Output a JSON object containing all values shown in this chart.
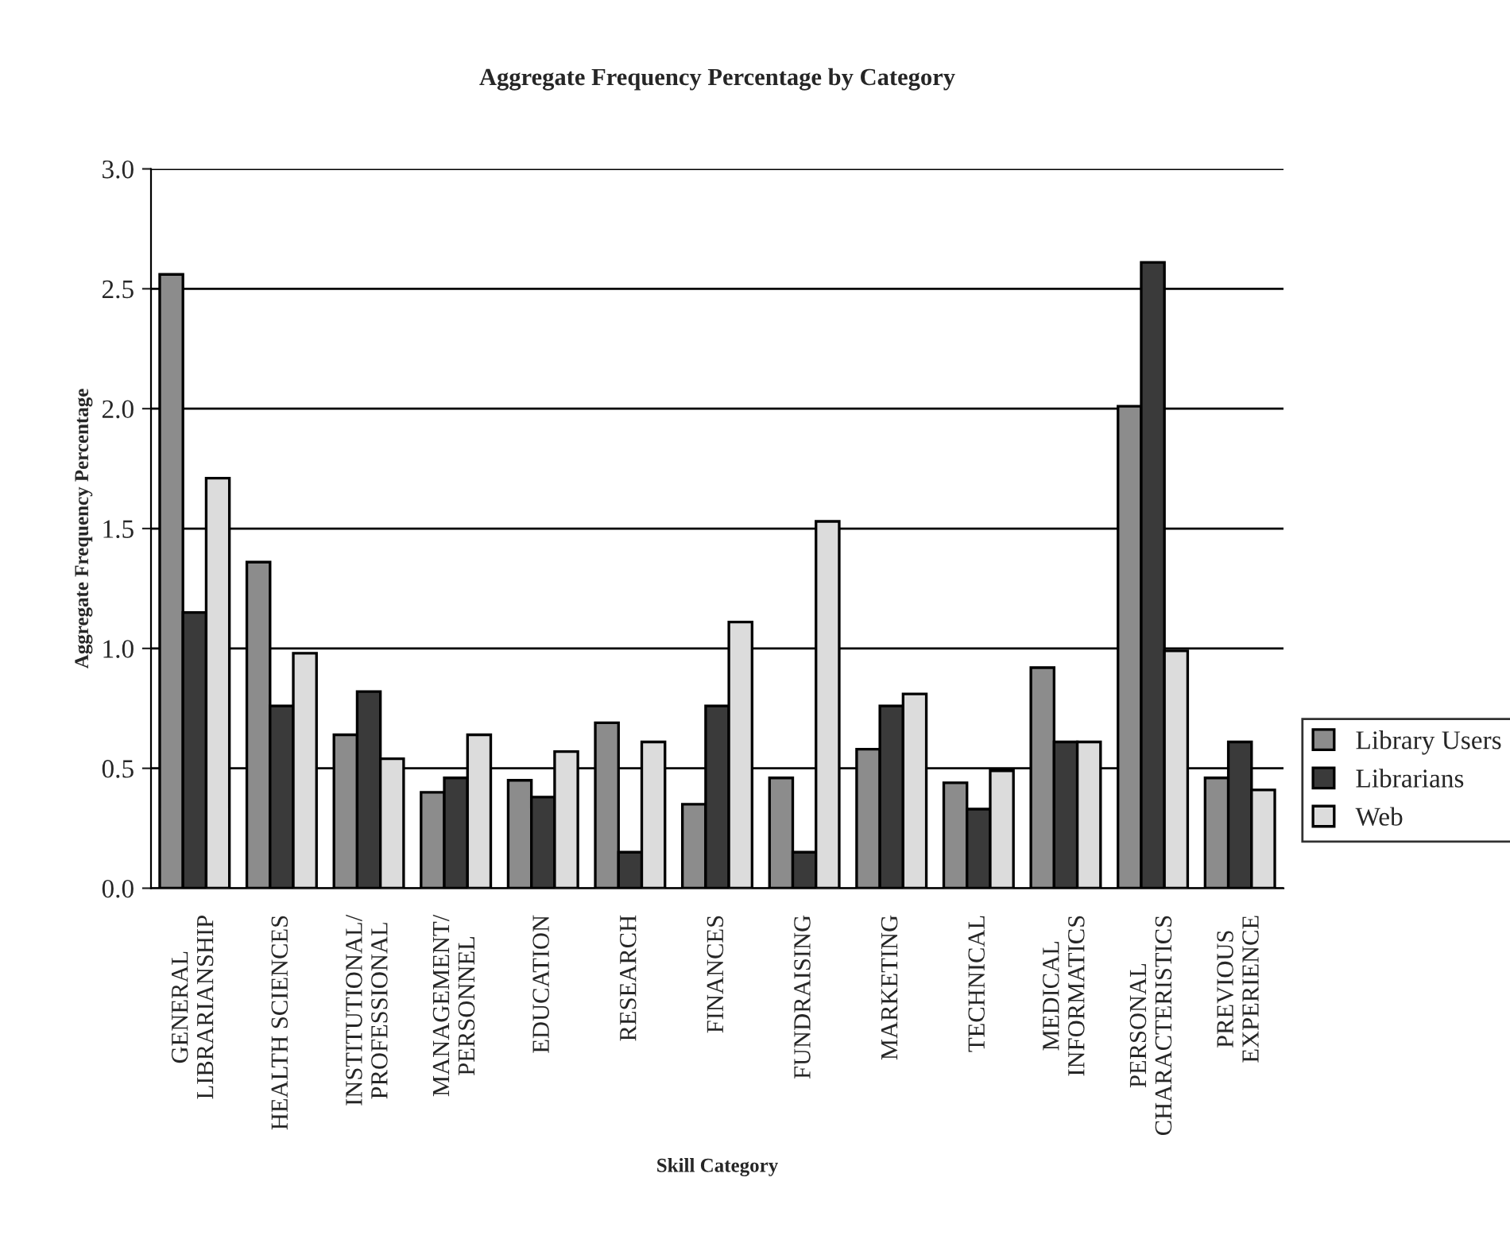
{
  "chart_data": {
    "type": "bar",
    "title": "Aggregate Frequency Percentage by Category",
    "xlabel": "Skill Category",
    "ylabel": "Aggregate Frequency Percentage",
    "categories": [
      "GENERAL\nLIBRARIANSHIP",
      "HEALTH SCIENCES",
      "INSTITUTIONAL/\nPROFESSIONAL",
      "MANAGEMENT/\nPERSONNEL",
      "EDUCATION",
      "RESEARCH",
      "FINANCES",
      "FUNDRAISING",
      "MARKETING",
      "TECHNICAL",
      "MEDICAL\nINFORMATICS",
      "PERSONAL\nCHARACTERISTICS",
      "PREVIOUS\nEXPERIENCE"
    ],
    "series": [
      {
        "name": "Library Users",
        "color": "#8c8c8c",
        "values": [
          2.56,
          1.36,
          0.64,
          0.4,
          0.45,
          0.69,
          0.35,
          0.46,
          0.58,
          0.44,
          0.92,
          2.01,
          0.46
        ]
      },
      {
        "name": "Librarians",
        "color": "#3a3a3a",
        "values": [
          1.15,
          0.76,
          0.82,
          0.46,
          0.38,
          0.15,
          0.76,
          0.15,
          0.76,
          0.33,
          0.61,
          2.61,
          0.61
        ]
      },
      {
        "name": "Web",
        "color": "#dcdcdc",
        "values": [
          1.71,
          0.98,
          0.54,
          0.64,
          0.57,
          0.61,
          1.11,
          1.53,
          0.81,
          0.49,
          0.61,
          0.99,
          0.41
        ]
      }
    ],
    "ylim": [
      0,
      3.0
    ],
    "yticks": [
      {
        "value": 0,
        "label": "0.0"
      },
      {
        "value": 0.5,
        "label": "0.5"
      },
      {
        "value": 1.0,
        "label": "1.0"
      },
      {
        "value": 1.5,
        "label": "1.5"
      },
      {
        "value": 2.0,
        "label": "2.0"
      },
      {
        "value": 2.5,
        "label": "2.5"
      },
      {
        "value": 3.0,
        "label": "3.0"
      }
    ],
    "grid": "y",
    "legend": "right"
  }
}
